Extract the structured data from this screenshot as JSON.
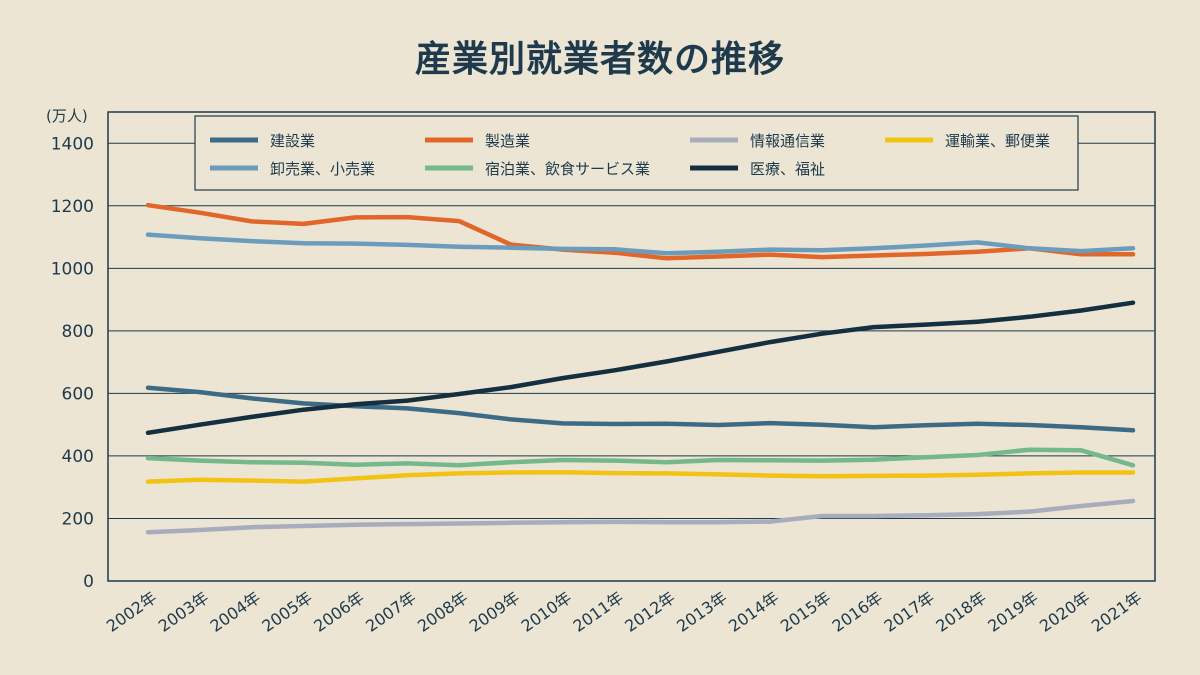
{
  "chart_data": {
    "type": "line",
    "title": "産業別就業者数の推移",
    "ylabel": "(万人)",
    "xlabel": "",
    "ylim": [
      0,
      1500
    ],
    "yticks": [
      0,
      200,
      400,
      600,
      800,
      1000,
      1200,
      1400
    ],
    "grid": true,
    "legend_position": "top",
    "categories": [
      "2002年",
      "2003年",
      "2004年",
      "2005年",
      "2006年",
      "2007年",
      "2008年",
      "2009年",
      "2010年",
      "2011年",
      "2012年",
      "2013年",
      "2014年",
      "2015年",
      "2016年",
      "2017年",
      "2018年",
      "2019年",
      "2020年",
      "2021年"
    ],
    "series": [
      {
        "name": "建設業",
        "color": "#3d6b86",
        "values": [
          618,
          604,
          584,
          568,
          559,
          552,
          537,
          517,
          504,
          502,
          503,
          499,
          505,
          500,
          492,
          498,
          503,
          499,
          492,
          482
        ]
      },
      {
        "name": "製造業",
        "color": "#e0662a",
        "values": [
          1202,
          1178,
          1150,
          1142,
          1163,
          1164,
          1151,
          1076,
          1060,
          1050,
          1032,
          1038,
          1044,
          1036,
          1041,
          1046,
          1053,
          1064,
          1045,
          1045
        ]
      },
      {
        "name": "情報通信業",
        "color": "#a8adbe",
        "values": [
          156,
          163,
          172,
          176,
          180,
          182,
          184,
          186,
          188,
          189,
          188,
          188,
          190,
          208,
          208,
          210,
          214,
          222,
          240,
          256
        ]
      },
      {
        "name": "運輸業、郵便業",
        "color": "#f2c314",
        "values": [
          318,
          324,
          321,
          318,
          328,
          338,
          344,
          347,
          348,
          345,
          344,
          341,
          337,
          335,
          336,
          337,
          340,
          344,
          347,
          347
        ]
      },
      {
        "name": "卸売業、小売業",
        "color": "#6b9cbc",
        "values": [
          1108,
          1096,
          1087,
          1080,
          1079,
          1075,
          1069,
          1066,
          1062,
          1061,
          1048,
          1053,
          1060,
          1058,
          1064,
          1073,
          1083,
          1064,
          1055,
          1064
        ]
      },
      {
        "name": "宿泊業、飲食サービス業",
        "color": "#74b98a",
        "values": [
          393,
          385,
          380,
          378,
          372,
          376,
          370,
          380,
          387,
          385,
          380,
          387,
          386,
          385,
          388,
          396,
          403,
          420,
          418,
          370
        ]
      },
      {
        "name": "医療、福祉",
        "color": "#142f40",
        "values": [
          474,
          500,
          525,
          548,
          565,
          577,
          598,
          620,
          649,
          674,
          702,
          733,
          764,
          791,
          812,
          820,
          829,
          845,
          865,
          890
        ]
      }
    ]
  }
}
